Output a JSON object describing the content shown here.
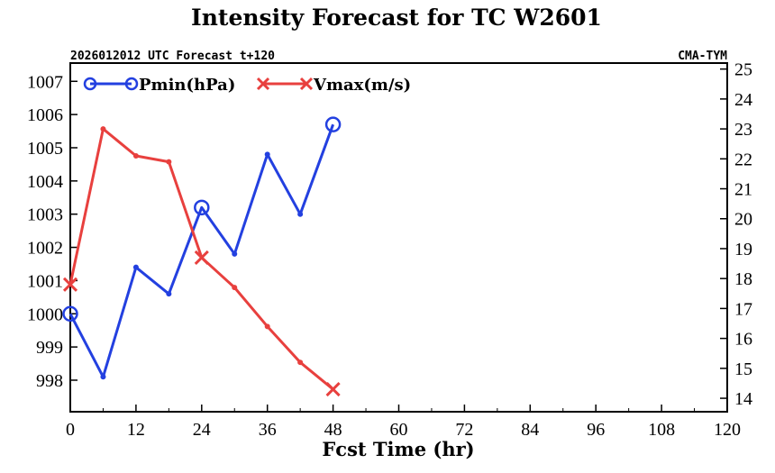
{
  "chart_data": {
    "type": "line",
    "title": "Intensity Forecast for TC W2601",
    "subtitle_left": "2026012012 UTC Forecast t+120",
    "subtitle_right": "CMA-TYM",
    "xlabel": "Fcst Time (hr)",
    "xlim": [
      0,
      120
    ],
    "xticks": [
      0,
      12,
      24,
      36,
      48,
      60,
      72,
      84,
      96,
      108,
      120
    ],
    "y_left": {
      "lim": [
        997.05,
        1007.55
      ],
      "ticks": [
        998,
        999,
        1000,
        1001,
        1002,
        1003,
        1004,
        1005,
        1006,
        1007
      ]
    },
    "y_right": {
      "lim": [
        13.55,
        25.2
      ],
      "ticks": [
        14,
        15,
        16,
        17,
        18,
        19,
        20,
        21,
        22,
        23,
        24,
        25
      ]
    },
    "legend_position": "top-left",
    "series": [
      {
        "name": "Pmin(hPa)",
        "axis": "left",
        "color": "#2340e0",
        "marker": "circle",
        "x": [
          0,
          6,
          12,
          18,
          24,
          30,
          36,
          42,
          48
        ],
        "values": [
          1000.0,
          998.1,
          1001.4,
          1000.6,
          1003.2,
          1001.8,
          1004.8,
          1003.0,
          1005.7
        ],
        "major_x": [
          0,
          24,
          48
        ]
      },
      {
        "name": "Vmax(m/s)",
        "axis": "right",
        "color": "#e8403e",
        "marker": "x",
        "x": [
          0,
          6,
          12,
          18,
          24,
          30,
          36,
          42,
          48
        ],
        "values": [
          17.8,
          23.0,
          22.1,
          21.9,
          18.7,
          17.7,
          16.4,
          15.2,
          14.3
        ],
        "major_x": [
          0,
          24,
          48
        ]
      }
    ]
  }
}
